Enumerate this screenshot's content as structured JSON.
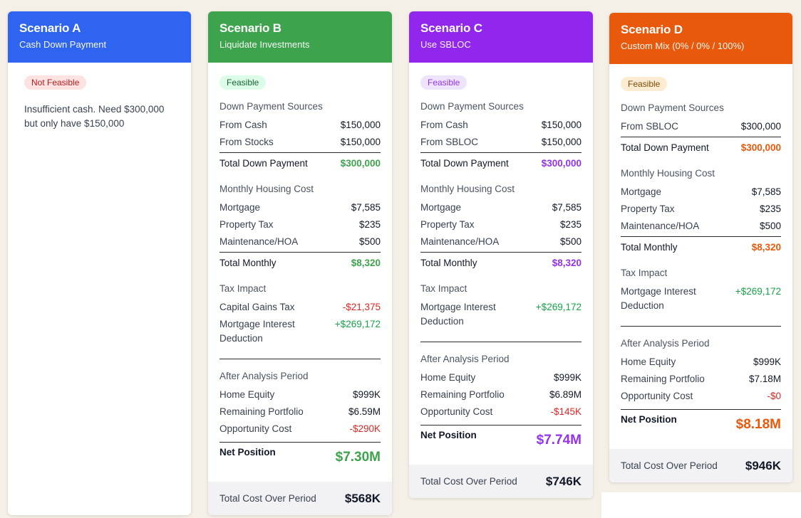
{
  "scenarios": {
    "a": {
      "title": "Scenario A",
      "subtitle": "Cash Down Payment",
      "color": "#2f64f0",
      "status": "Not Feasible",
      "message": "Insufficient cash. Need $300,000 but only have $150,000"
    },
    "b": {
      "title": "Scenario B",
      "subtitle": "Liquidate Investments",
      "color": "#3da34d",
      "status": "Feasible",
      "down_title": "Down Payment Sources",
      "down": [
        {
          "label": "From Cash",
          "value": "$150,000"
        },
        {
          "label": "From Stocks",
          "value": "$150,000"
        }
      ],
      "down_total_label": "Total Down Payment",
      "down_total": "$300,000",
      "monthly_title": "Monthly Housing Cost",
      "monthly": [
        {
          "label": "Mortgage",
          "value": "$7,585"
        },
        {
          "label": "Property Tax",
          "value": "$235"
        },
        {
          "label": "Maintenance/HOA",
          "value": "$500"
        }
      ],
      "monthly_total_label": "Total Monthly",
      "monthly_total": "$8,320",
      "tax_title": "Tax Impact",
      "tax": [
        {
          "label": "Capital Gains Tax",
          "value": "-$21,375"
        },
        {
          "label": "Mortgage Interest Deduction",
          "value": "+$269,172"
        }
      ],
      "after_title": "After Analysis Period",
      "after": [
        {
          "label": "Home Equity",
          "value": "$999K"
        },
        {
          "label": "Remaining Portfolio",
          "value": "$6.59M"
        },
        {
          "label": "Opportunity Cost",
          "value": "-$290K"
        }
      ],
      "net_label": "Net Position",
      "net_value": "$7.30M",
      "footer_label": "Total Cost Over Period",
      "footer_value": "$568K"
    },
    "c": {
      "title": "Scenario C",
      "subtitle": "Use SBLOC",
      "color": "#9126ec",
      "status": "Feasible",
      "down_title": "Down Payment Sources",
      "down": [
        {
          "label": "From Cash",
          "value": "$150,000"
        },
        {
          "label": "From SBLOC",
          "value": "$150,000"
        }
      ],
      "down_total_label": "Total Down Payment",
      "down_total": "$300,000",
      "monthly_title": "Monthly Housing Cost",
      "monthly": [
        {
          "label": "Mortgage",
          "value": "$7,585"
        },
        {
          "label": "Property Tax",
          "value": "$235"
        },
        {
          "label": "Maintenance/HOA",
          "value": "$500"
        }
      ],
      "monthly_total_label": "Total Monthly",
      "monthly_total": "$8,320",
      "tax_title": "Tax Impact",
      "tax": [
        {
          "label": "Mortgage Interest Deduction",
          "value": "+$269,172"
        }
      ],
      "after_title": "After Analysis Period",
      "after": [
        {
          "label": "Home Equity",
          "value": "$999K"
        },
        {
          "label": "Remaining Portfolio",
          "value": "$6.89M"
        },
        {
          "label": "Opportunity Cost",
          "value": "-$145K"
        }
      ],
      "net_label": "Net Position",
      "net_value": "$7.74M",
      "footer_label": "Total Cost Over Period",
      "footer_value": "$746K"
    },
    "d": {
      "title": "Scenario D",
      "subtitle": "Custom Mix (0% / 0% / 100%)",
      "color": "#e8590c",
      "status": "Feasible",
      "down_title": "Down Payment Sources",
      "down": [
        {
          "label": "From SBLOC",
          "value": "$300,000"
        }
      ],
      "down_total_label": "Total Down Payment",
      "down_total": "$300,000",
      "monthly_title": "Monthly Housing Cost",
      "monthly": [
        {
          "label": "Mortgage",
          "value": "$7,585"
        },
        {
          "label": "Property Tax",
          "value": "$235"
        },
        {
          "label": "Maintenance/HOA",
          "value": "$500"
        }
      ],
      "monthly_total_label": "Total Monthly",
      "monthly_total": "$8,320",
      "tax_title": "Tax Impact",
      "tax": [
        {
          "label": "Mortgage Interest Deduction",
          "value": "+$269,172"
        }
      ],
      "after_title": "After Analysis Period",
      "after": [
        {
          "label": "Home Equity",
          "value": "$999K"
        },
        {
          "label": "Remaining Portfolio",
          "value": "$7.18M"
        },
        {
          "label": "Opportunity Cost",
          "value": "-$0"
        }
      ],
      "net_label": "Net Position",
      "net_value": "$8.18M",
      "footer_label": "Total Cost Over Period",
      "footer_value": "$946K"
    }
  }
}
